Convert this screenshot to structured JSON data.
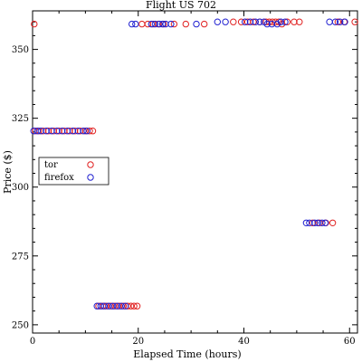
{
  "chart_data": {
    "type": "scatter",
    "title": "Flight US 702",
    "xlabel": "Elapsed Time (hours)",
    "ylabel": "Price ($)",
    "xlim": [
      0,
      61.5
    ],
    "ylim": [
      247,
      364
    ],
    "x_ticks": [
      0,
      20,
      40,
      60
    ],
    "y_ticks": [
      250,
      275,
      300,
      325,
      350
    ],
    "grid": false,
    "legend_position": "left, middle",
    "series": [
      {
        "name": "tor",
        "color": "#e02020",
        "marker": "open-circle",
        "points": [
          [
            0.3,
            359.2
          ],
          [
            0.5,
            320.4
          ],
          [
            1.2,
            320.4
          ],
          [
            2.0,
            320.4
          ],
          [
            3.0,
            320.4
          ],
          [
            4.0,
            320.4
          ],
          [
            5.0,
            320.4
          ],
          [
            6.0,
            320.4
          ],
          [
            7.0,
            320.4
          ],
          [
            8.0,
            320.4
          ],
          [
            9.0,
            320.4
          ],
          [
            10.0,
            320.4
          ],
          [
            10.8,
            320.4
          ],
          [
            11.4,
            320.4
          ],
          [
            12.5,
            256.8
          ],
          [
            13.3,
            256.8
          ],
          [
            14.0,
            256.8
          ],
          [
            14.8,
            256.8
          ],
          [
            15.6,
            256.8
          ],
          [
            16.4,
            256.8
          ],
          [
            17.2,
            256.8
          ],
          [
            18.0,
            256.8
          ],
          [
            18.6,
            256.8
          ],
          [
            19.2,
            256.8
          ],
          [
            19.8,
            256.8
          ],
          [
            20.7,
            359.2
          ],
          [
            21.8,
            359.2
          ],
          [
            22.8,
            359.2
          ],
          [
            23.8,
            359.2
          ],
          [
            24.8,
            359.2
          ],
          [
            26.8,
            359.2
          ],
          [
            29.0,
            359.2
          ],
          [
            32.5,
            359.2
          ],
          [
            38.0,
            360.0
          ],
          [
            39.5,
            360.0
          ],
          [
            40.7,
            360.0
          ],
          [
            41.8,
            360.0
          ],
          [
            43.0,
            360.0
          ],
          [
            44.2,
            360.0
          ],
          [
            44.8,
            360.0
          ],
          [
            45.4,
            360.0
          ],
          [
            46.0,
            360.0
          ],
          [
            46.6,
            360.0
          ],
          [
            47.2,
            359.2
          ],
          [
            48.2,
            360.0
          ],
          [
            49.5,
            360.0
          ],
          [
            50.5,
            360.0
          ],
          [
            53.0,
            287.0
          ],
          [
            54.3,
            287.0
          ],
          [
            55.5,
            287.0
          ],
          [
            56.8,
            287.0
          ],
          [
            57.8,
            360.0
          ],
          [
            59.0,
            360.0
          ],
          [
            61.0,
            360.0
          ]
        ]
      },
      {
        "name": "firefox",
        "color": "#2020d0",
        "marker": "open-circle",
        "points": [
          [
            0.2,
            320.4
          ],
          [
            0.9,
            320.4
          ],
          [
            1.6,
            320.4
          ],
          [
            2.6,
            320.4
          ],
          [
            3.6,
            320.4
          ],
          [
            4.6,
            320.4
          ],
          [
            5.6,
            320.4
          ],
          [
            6.6,
            320.4
          ],
          [
            7.6,
            320.4
          ],
          [
            8.6,
            320.4
          ],
          [
            9.6,
            320.4
          ],
          [
            10.3,
            320.4
          ],
          [
            12.2,
            256.8
          ],
          [
            12.9,
            256.8
          ],
          [
            13.6,
            256.8
          ],
          [
            14.4,
            256.8
          ],
          [
            15.2,
            256.8
          ],
          [
            16.0,
            256.8
          ],
          [
            16.8,
            256.8
          ],
          [
            17.6,
            256.8
          ],
          [
            18.8,
            359.2
          ],
          [
            19.5,
            359.2
          ],
          [
            22.5,
            359.2
          ],
          [
            23.2,
            359.2
          ],
          [
            24.0,
            359.2
          ],
          [
            24.6,
            359.2
          ],
          [
            25.2,
            359.2
          ],
          [
            26.2,
            359.2
          ],
          [
            31.0,
            359.2
          ],
          [
            35.0,
            360.0
          ],
          [
            36.5,
            360.0
          ],
          [
            40.2,
            360.0
          ],
          [
            41.2,
            360.0
          ],
          [
            42.2,
            360.0
          ],
          [
            43.0,
            360.0
          ],
          [
            43.8,
            360.0
          ],
          [
            44.4,
            359.2
          ],
          [
            45.3,
            359.2
          ],
          [
            46.3,
            359.2
          ],
          [
            47.0,
            360.0
          ],
          [
            47.8,
            360.0
          ],
          [
            51.8,
            287.0
          ],
          [
            52.4,
            287.0
          ],
          [
            53.4,
            287.0
          ],
          [
            54.0,
            287.0
          ],
          [
            54.8,
            287.0
          ],
          [
            55.4,
            287.0
          ],
          [
            56.2,
            360.0
          ],
          [
            57.3,
            360.0
          ],
          [
            58.2,
            360.0
          ],
          [
            59.1,
            360.0
          ]
        ]
      }
    ]
  }
}
